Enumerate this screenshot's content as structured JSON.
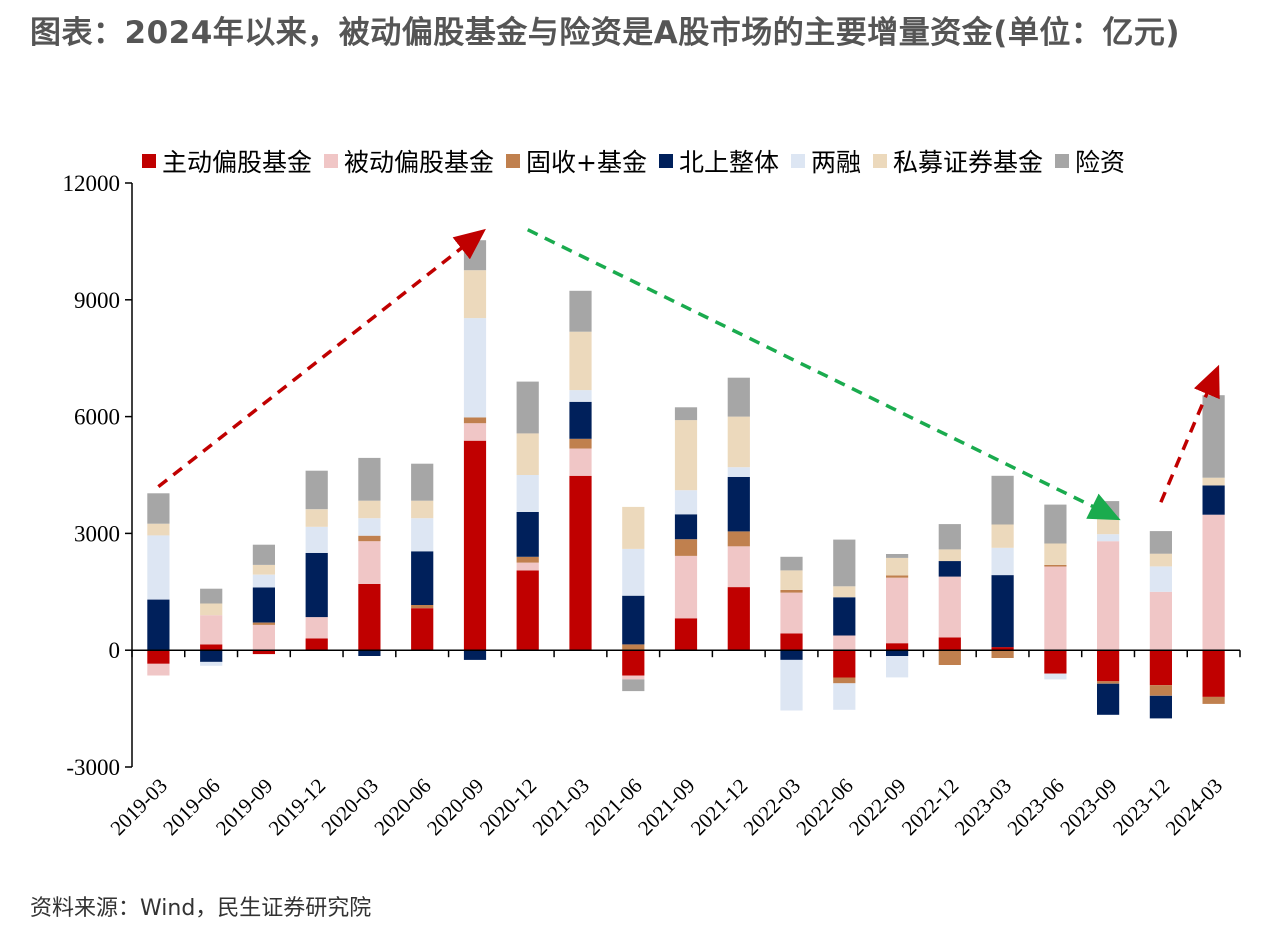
{
  "title": "图表：2024年以来，被动偏股基金与险资是A股市场的主要增量资金(单位：亿元)",
  "source": "资料来源：Wind，民生证券研究院",
  "chart_data": {
    "type": "bar",
    "stacked": true,
    "categories": [
      "2019-03",
      "2019-06",
      "2019-09",
      "2019-12",
      "2020-03",
      "2020-06",
      "2020-09",
      "2020-12",
      "2021-03",
      "2021-06",
      "2021-09",
      "2021-12",
      "2022-03",
      "2022-06",
      "2022-09",
      "2022-12",
      "2023-03",
      "2023-06",
      "2023-09",
      "2023-12",
      "2024-03"
    ],
    "ylim": [
      -3000,
      12000
    ],
    "yticks": [
      -3000,
      0,
      3000,
      6000,
      9000,
      12000
    ],
    "legend_position": "top",
    "series": [
      {
        "name": "主动偏股基金",
        "color": "#c00000",
        "values": [
          -350,
          150,
          -100,
          300,
          1700,
          1080,
          5380,
          2050,
          4480,
          -650,
          820,
          1620,
          430,
          -700,
          180,
          330,
          80,
          -600,
          -800,
          -900,
          -1200
        ]
      },
      {
        "name": "被动偏股基金",
        "color": "#f0c6c6",
        "values": [
          -300,
          750,
          650,
          550,
          1100,
          0,
          450,
          200,
          700,
          -100,
          1600,
          1050,
          1050,
          380,
          1680,
          1560,
          0,
          2150,
          2800,
          1500,
          3480
        ]
      },
      {
        "name": "固收+基金",
        "color": "#c0804e",
        "values": [
          0,
          0,
          60,
          0,
          140,
          80,
          150,
          150,
          250,
          150,
          430,
          380,
          70,
          -150,
          60,
          -380,
          -200,
          40,
          -60,
          -270,
          -180
        ]
      },
      {
        "name": "北上整体",
        "color": "#00205b",
        "values": [
          1300,
          -300,
          900,
          1650,
          -150,
          1380,
          -250,
          1150,
          950,
          1250,
          640,
          1400,
          -250,
          980,
          -150,
          400,
          1850,
          0,
          -800,
          -580,
          750
        ]
      },
      {
        "name": "两融",
        "color": "#dde6f3",
        "values": [
          1650,
          -100,
          330,
          670,
          450,
          850,
          2550,
          950,
          300,
          1200,
          620,
          250,
          -1300,
          -680,
          -550,
          0,
          700,
          -150,
          180,
          650,
          0
        ]
      },
      {
        "name": "私募证券基金",
        "color": "#ecd9bc",
        "values": [
          300,
          300,
          250,
          450,
          450,
          450,
          1230,
          1070,
          1500,
          1080,
          1800,
          1300,
          500,
          280,
          450,
          300,
          600,
          550,
          400,
          330,
          200
        ]
      },
      {
        "name": "险资",
        "color": "#a6a6a6",
        "values": [
          780,
          380,
          520,
          990,
          1100,
          950,
          770,
          1330,
          1050,
          -300,
          330,
          1000,
          350,
          1200,
          100,
          650,
          1250,
          1000,
          450,
          580,
          2120
        ]
      }
    ],
    "annotations": [
      {
        "type": "arrow",
        "color": "#c00000",
        "style": "dashed",
        "from": [
          "2019-03",
          4200
        ],
        "to": [
          "2020-09",
          10600
        ]
      },
      {
        "type": "arrow",
        "color": "#1aab4e",
        "style": "dashed",
        "from": [
          "2020-12",
          10800
        ],
        "to": [
          "2023-09",
          3500
        ]
      },
      {
        "type": "arrow",
        "color": "#c00000",
        "style": "dashed",
        "from": [
          "2023-12",
          3800
        ],
        "to": [
          "2024-03",
          7000
        ]
      }
    ]
  }
}
